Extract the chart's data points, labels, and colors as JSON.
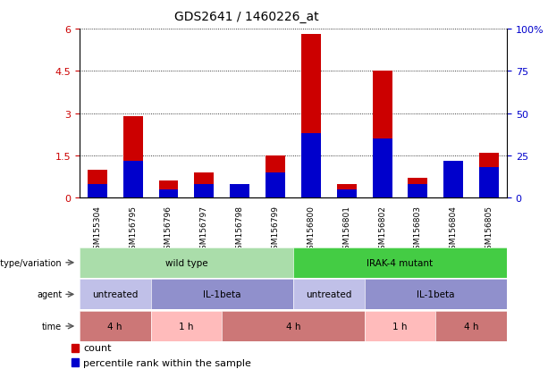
{
  "title": "GDS2641 / 1460226_at",
  "samples": [
    "GSM155304",
    "GSM156795",
    "GSM156796",
    "GSM156797",
    "GSM156798",
    "GSM156799",
    "GSM156800",
    "GSM156801",
    "GSM156802",
    "GSM156803",
    "GSM156804",
    "GSM156805"
  ],
  "count_values": [
    1.0,
    2.9,
    0.6,
    0.9,
    0.5,
    1.5,
    5.8,
    0.5,
    4.5,
    0.7,
    0.9,
    1.6
  ],
  "percentile_values_pct": [
    8,
    22,
    5,
    8,
    8,
    15,
    38,
    5,
    35,
    8,
    22,
    18
  ],
  "count_color": "#cc0000",
  "percentile_color": "#0000cc",
  "bar_width": 0.55,
  "ylim_left": [
    0,
    6
  ],
  "ylim_right": [
    0,
    100
  ],
  "yticks_left": [
    0,
    1.5,
    3.0,
    4.5,
    6.0
  ],
  "yticks_left_labels": [
    "0",
    "1.5",
    "3",
    "4.5",
    "6"
  ],
  "yticks_right": [
    0,
    25,
    50,
    75,
    100
  ],
  "yticks_right_labels": [
    "0",
    "25",
    "50",
    "75",
    "100%"
  ],
  "bg_color": "#ffffff",
  "genotype_row": {
    "label": "genotype/variation",
    "groups": [
      {
        "text": "wild type",
        "start": 0,
        "end": 5,
        "color": "#aaddaa"
      },
      {
        "text": "IRAK-4 mutant",
        "start": 6,
        "end": 11,
        "color": "#44cc44"
      }
    ]
  },
  "agent_row": {
    "label": "agent",
    "groups": [
      {
        "text": "untreated",
        "start": 0,
        "end": 1,
        "color": "#c0c0e8"
      },
      {
        "text": "IL-1beta",
        "start": 2,
        "end": 5,
        "color": "#9090cc"
      },
      {
        "text": "untreated",
        "start": 6,
        "end": 7,
        "color": "#c0c0e8"
      },
      {
        "text": "IL-1beta",
        "start": 8,
        "end": 11,
        "color": "#9090cc"
      }
    ]
  },
  "time_row": {
    "label": "time",
    "groups": [
      {
        "text": "4 h",
        "start": 0,
        "end": 1,
        "color": "#cc7777"
      },
      {
        "text": "1 h",
        "start": 2,
        "end": 3,
        "color": "#ffbbbb"
      },
      {
        "text": "4 h",
        "start": 4,
        "end": 7,
        "color": "#cc7777"
      },
      {
        "text": "1 h",
        "start": 8,
        "end": 9,
        "color": "#ffbbbb"
      },
      {
        "text": "4 h",
        "start": 10,
        "end": 11,
        "color": "#cc7777"
      }
    ]
  },
  "legend_count_label": "count",
  "legend_percentile_label": "percentile rank within the sample"
}
